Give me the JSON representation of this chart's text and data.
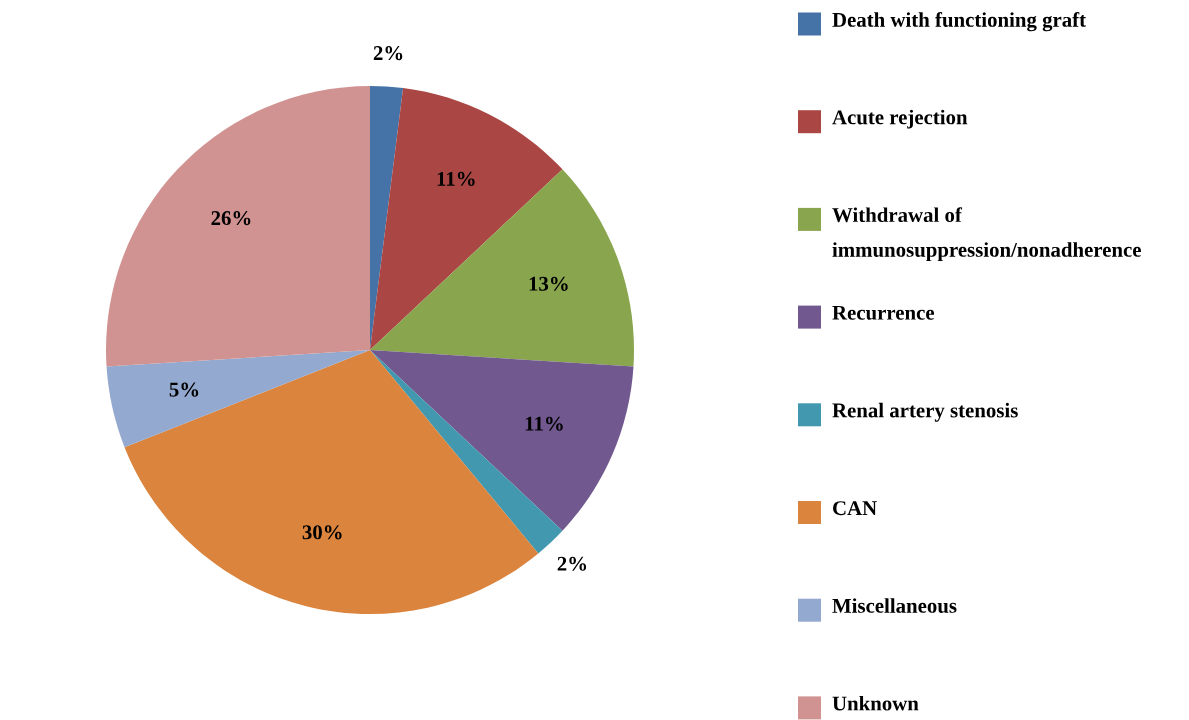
{
  "chart_data": {
    "type": "pie",
    "categories": [
      "Death with functioning graft",
      "Acute rejection",
      "Withdrawal of immunosuppression/nonadherence",
      "Recurrence",
      "Renal artery stenosis",
      "CAN",
      "Miscellaneous",
      "Unknown"
    ],
    "values": [
      2,
      11,
      13,
      11,
      2,
      30,
      5,
      26
    ],
    "colors": [
      "#4572a7",
      "#aa4643",
      "#89a54e",
      "#71588f",
      "#4198af",
      "#db843d",
      "#93a9cf",
      "#d19392"
    ],
    "value_labels": [
      "2%",
      "11%",
      "13%",
      "11%",
      "2%",
      "30%",
      "5%",
      "26%"
    ],
    "legend": "right"
  }
}
